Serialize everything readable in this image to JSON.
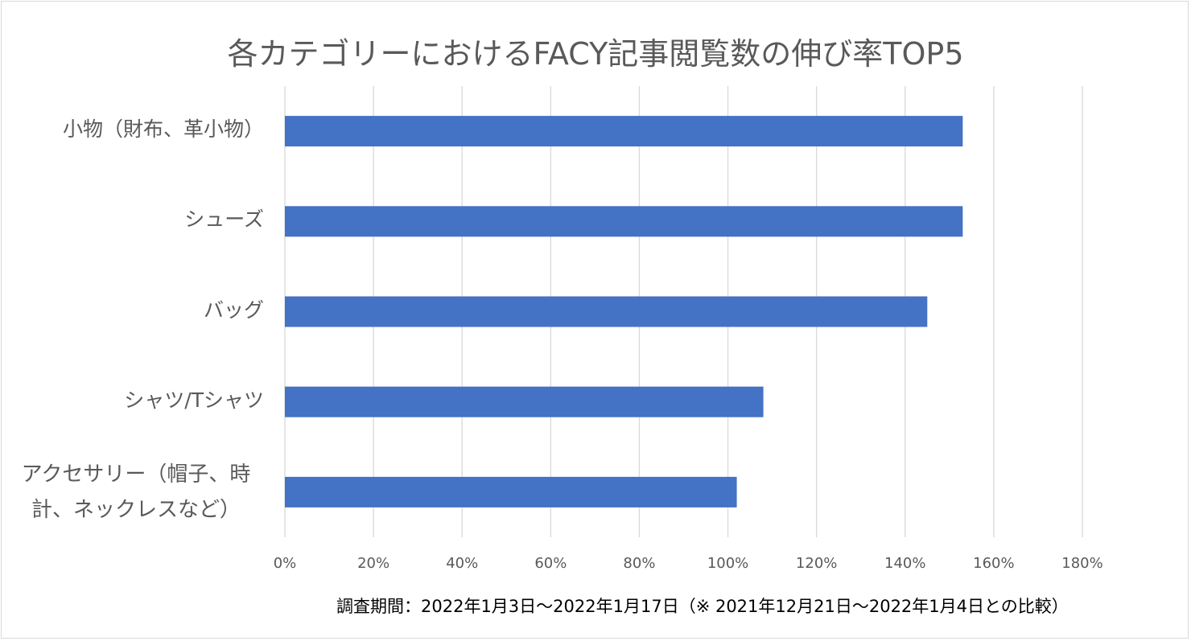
{
  "chart_data": {
    "type": "bar",
    "orientation": "horizontal",
    "title": "各カテゴリーにおけるFACY記事閲覧数の伸び率TOP5",
    "categories": [
      "小物（財布、革小物）",
      "シューズ",
      "バッグ",
      "シャツ/Tシャツ",
      "アクセサリー（帽子、時計、ネックレスなど）"
    ],
    "values": [
      153,
      153,
      145,
      108,
      102
    ],
    "unit": "%",
    "xlim": [
      0,
      180
    ],
    "xticks": [
      0,
      20,
      40,
      60,
      80,
      100,
      120,
      140,
      160,
      180
    ],
    "xtick_labels": [
      "0%",
      "20%",
      "40%",
      "60%",
      "80%",
      "100%",
      "120%",
      "140%",
      "160%",
      "180%"
    ],
    "grid": "vertical",
    "bar_color": "#4472c4",
    "legend": "none",
    "note": "調査期間：2022年1月3日～2022年1月17日（※ 2021年12月21日～2022年1月4日との比較）"
  }
}
